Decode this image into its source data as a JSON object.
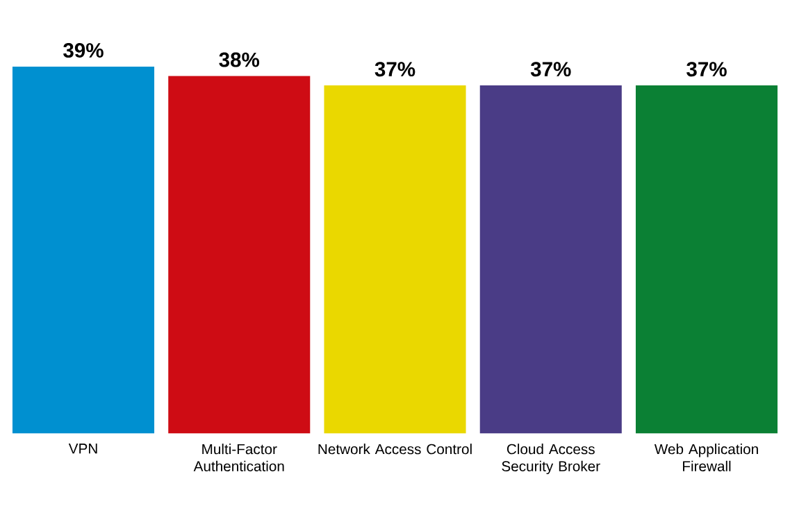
{
  "chart_data": {
    "type": "bar",
    "categories": [
      "VPN",
      "Multi-Factor Authentication",
      "Network Access Control",
      "Cloud Access Security Broker",
      "Web Application Firewall"
    ],
    "values": [
      39,
      38,
      37,
      37,
      37
    ],
    "colors": [
      "#0090d0",
      "#ce0c14",
      "#ead800",
      "#4a3c86",
      "#0b8034"
    ],
    "value_labels": [
      "39%",
      "38%",
      "37%",
      "37%",
      "37%"
    ],
    "tick_labels": "x"
  }
}
